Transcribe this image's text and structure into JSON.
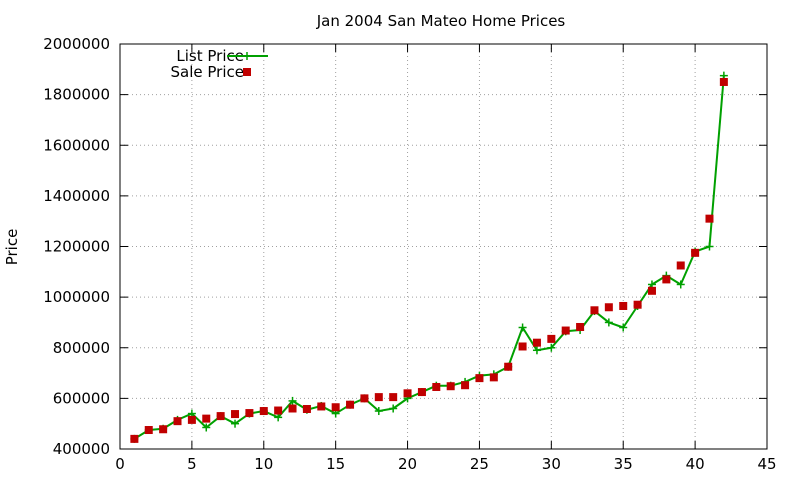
{
  "chart_data": {
    "type": "line",
    "title": "Jan 2004 San Mateo Home Prices",
    "xlabel": "",
    "ylabel": "Price",
    "xlim": [
      0,
      45
    ],
    "ylim": [
      400000,
      2000000
    ],
    "x_ticks": [
      0,
      5,
      10,
      15,
      20,
      25,
      30,
      35,
      40,
      45
    ],
    "y_ticks": [
      400000,
      600000,
      800000,
      1000000,
      1200000,
      1400000,
      1600000,
      1800000,
      2000000
    ],
    "grid": true,
    "legend_position": "top-left",
    "x": [
      1,
      2,
      3,
      4,
      5,
      6,
      7,
      8,
      9,
      10,
      11,
      12,
      13,
      14,
      15,
      16,
      17,
      18,
      19,
      20,
      21,
      22,
      23,
      24,
      25,
      26,
      27,
      28,
      29,
      30,
      31,
      32,
      33,
      34,
      35,
      36,
      37,
      38,
      39,
      40,
      41,
      42
    ],
    "series": [
      {
        "name": "List Price",
        "style": "line-plus",
        "color": "#00a000",
        "values": [
          440000,
          475000,
          480000,
          515000,
          540000,
          485000,
          530000,
          500000,
          540000,
          550000,
          525000,
          590000,
          555000,
          570000,
          540000,
          575000,
          600000,
          550000,
          560000,
          600000,
          625000,
          650000,
          650000,
          665000,
          690000,
          695000,
          725000,
          880000,
          790000,
          800000,
          865000,
          870000,
          945000,
          900000,
          880000,
          965000,
          1050000,
          1085000,
          1050000,
          1180000,
          1200000,
          1875000
        ]
      },
      {
        "name": "Sale Price",
        "style": "square-points",
        "color": "#c00000",
        "values": [
          440000,
          475000,
          478000,
          510000,
          515000,
          520000,
          530000,
          538000,
          542000,
          550000,
          552000,
          560000,
          558000,
          568000,
          565000,
          575000,
          600000,
          605000,
          605000,
          620000,
          625000,
          645000,
          648000,
          652000,
          680000,
          683000,
          725000,
          805000,
          820000,
          835000,
          868000,
          882000,
          948000,
          960000,
          965000,
          970000,
          1025000,
          1070000,
          1125000,
          1175000,
          1310000,
          1850000
        ]
      }
    ]
  }
}
